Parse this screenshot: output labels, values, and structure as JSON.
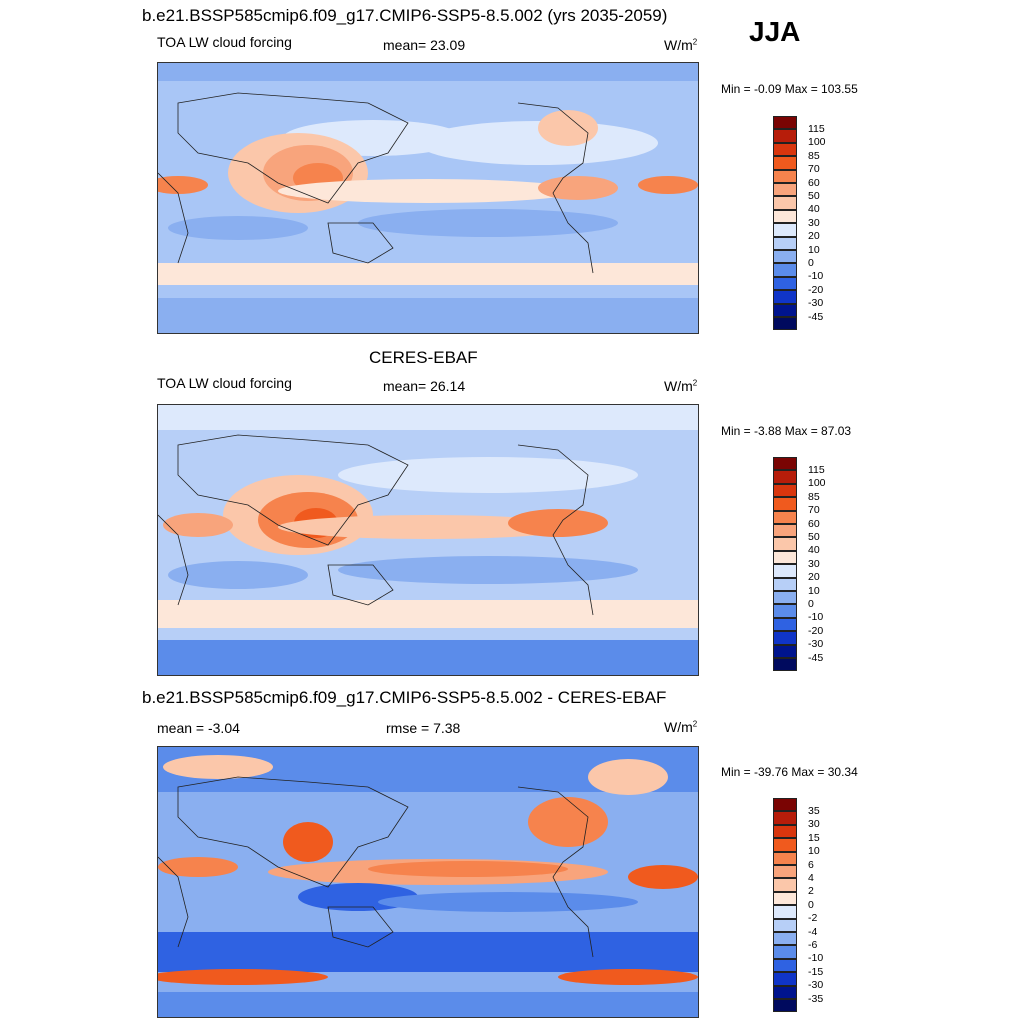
{
  "season": "JJA",
  "panels": [
    {
      "id": "model",
      "title": "b.e21.BSSP585cmip6.f09_g17.CMIP6-SSP5-8.5.002 (yrs 2035-2059)",
      "left_label": "TOA LW cloud forcing",
      "center_label": "mean=  23.09",
      "units_main": "W/m",
      "units_exp": "2",
      "minmax": "Min =  -0.09 Max = 103.55",
      "colorbar_labels": [
        "115",
        "100",
        "85",
        "70",
        "60",
        "50",
        "40",
        "30",
        "20",
        "10",
        "0",
        "-10",
        "-20",
        "-30",
        "-45"
      ]
    },
    {
      "id": "obs",
      "title": "CERES-EBAF",
      "left_label": "TOA LW cloud forcing",
      "center_label": "mean=  26.14",
      "units_main": "W/m",
      "units_exp": "2",
      "minmax": "Min =  -3.88 Max =  87.03",
      "colorbar_labels": [
        "115",
        "100",
        "85",
        "70",
        "60",
        "50",
        "40",
        "30",
        "20",
        "10",
        "0",
        "-10",
        "-20",
        "-30",
        "-45"
      ]
    },
    {
      "id": "diff",
      "title": "b.e21.BSSP585cmip6.f09_g17.CMIP6-SSP5-8.5.002 - CERES-EBAF",
      "left_label": "mean =  -3.04",
      "center_label": "rmse =   7.38",
      "units_main": "W/m",
      "units_exp": "2",
      "minmax": "Min = -39.76 Max =  30.34",
      "colorbar_labels": [
        "35",
        "30",
        "15",
        "10",
        "6",
        "4",
        "2",
        "0",
        "-2",
        "-4",
        "-6",
        "-10",
        "-15",
        "-30",
        "-35"
      ]
    }
  ],
  "palette": [
    "#7a0403",
    "#b71d0a",
    "#d9360e",
    "#f05a1e",
    "#f6834d",
    "#f8a47c",
    "#fbc7aa",
    "#fde7d9",
    "#dde9fc",
    "#b7cff7",
    "#8aaff0",
    "#5b8cea",
    "#2f62e2",
    "#1035c8",
    "#00148e",
    "#000a5e"
  ]
}
